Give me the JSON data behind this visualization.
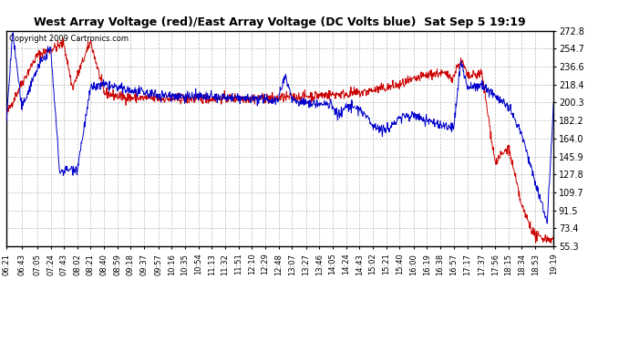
{
  "title": "West Array Voltage (red)/East Array Voltage (DC Volts blue)  Sat Sep 5 19:19",
  "copyright": "Copyright 2009 Cartronics.com",
  "bg_color": "#ffffff",
  "plot_bg_color": "#ffffff",
  "grid_color": "#aaaaaa",
  "red_color": "#cc0000",
  "blue_color": "#0000cc",
  "title_color": "#000000",
  "tick_color": "#000000",
  "ylim": [
    55.3,
    272.8
  ],
  "yticks": [
    55.3,
    73.4,
    91.5,
    109.7,
    127.8,
    145.9,
    164.0,
    182.2,
    200.3,
    218.4,
    236.6,
    254.7,
    272.8
  ],
  "xtick_labels": [
    "06:21",
    "06:43",
    "07:05",
    "07:24",
    "07:43",
    "08:02",
    "08:21",
    "08:40",
    "08:59",
    "09:18",
    "09:37",
    "09:57",
    "10:16",
    "10:35",
    "10:54",
    "11:13",
    "11:32",
    "11:51",
    "12:10",
    "12:29",
    "12:48",
    "13:07",
    "13:27",
    "13:46",
    "14:05",
    "14:24",
    "14:43",
    "15:02",
    "15:21",
    "15:40",
    "16:00",
    "16:19",
    "16:38",
    "16:57",
    "17:17",
    "17:37",
    "17:56",
    "18:15",
    "18:34",
    "18:53",
    "19:19"
  ],
  "figsize": [
    6.9,
    3.75
  ],
  "dpi": 100
}
